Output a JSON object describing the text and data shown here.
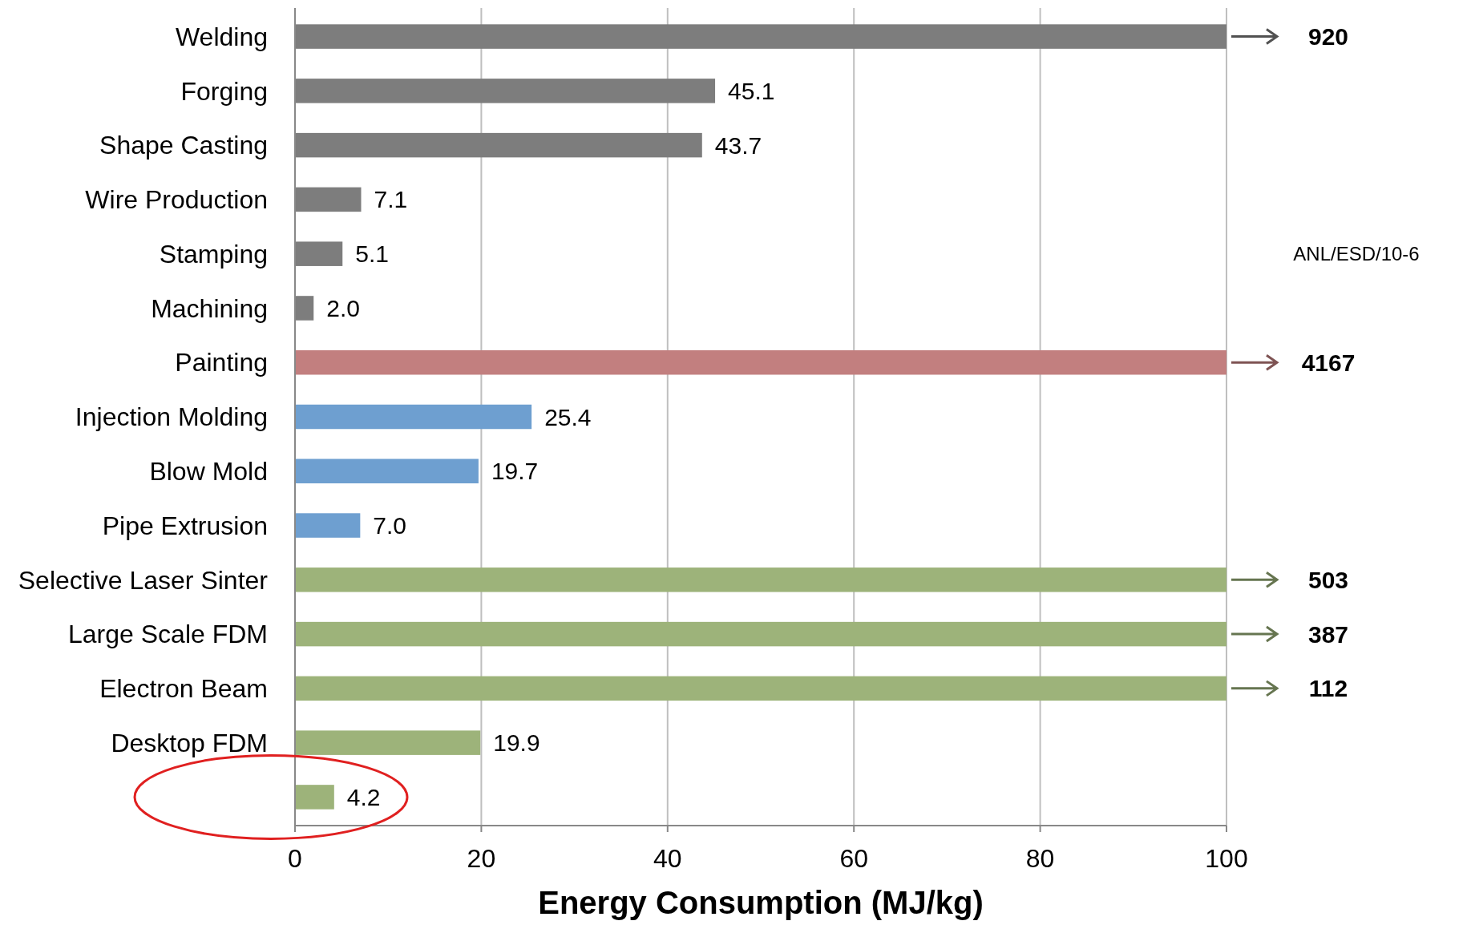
{
  "chart_data": {
    "type": "bar",
    "orientation": "horizontal",
    "xlabel": "Energy Consumption (MJ/kg)",
    "categories": [
      "Welding",
      "Forging",
      "Shape Casting",
      "Wire Production",
      "Stamping",
      "Machining",
      "Painting",
      "Injection Molding",
      "Blow Mold",
      "Pipe Extrusion",
      "Selective Laser Sinter",
      "Large Scale FDM",
      "Electron Beam",
      "Desktop FDM",
      null
    ],
    "values": [
      100,
      45.1,
      43.7,
      7.1,
      5.1,
      2.0,
      100,
      25.4,
      19.7,
      7.0,
      100,
      100,
      100,
      19.9,
      4.2
    ],
    "value_labels": [
      null,
      "45.1",
      "43.7",
      "7.1",
      "5.1",
      "2.0",
      null,
      "25.4",
      "19.7",
      "7.0",
      null,
      null,
      null,
      "19.9",
      "4.2"
    ],
    "colors": [
      "#7d7d7d",
      "#7d7d7d",
      "#7d7d7d",
      "#7d7d7d",
      "#7d7d7d",
      "#7d7d7d",
      "#c27f7f",
      "#6e9fd0",
      "#6e9fd0",
      "#6e9fd0",
      "#9db37a",
      "#9db37a",
      "#9db37a",
      "#9db37a",
      "#9db37a"
    ],
    "xlim": [
      0,
      100
    ],
    "xticks": [
      0,
      20,
      40,
      60,
      80,
      100
    ],
    "grid": "x",
    "annotations": [
      "920",
      "4167",
      "503",
      "387",
      "112",
      "ANL/ESD/10-6"
    ]
  }
}
